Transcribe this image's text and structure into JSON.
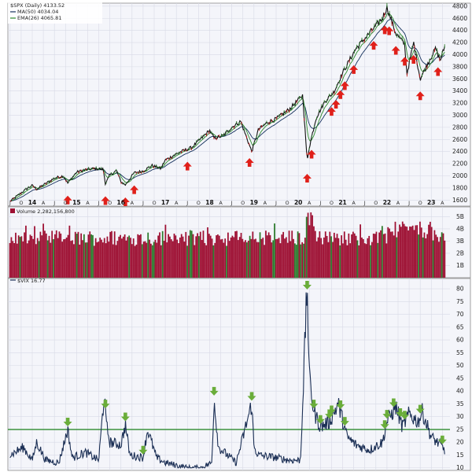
{
  "chart_data": [
    {
      "type": "line",
      "panel": "price",
      "legend": {
        "symbol": "$SPX (Daily) 4133.52",
        "ma": "MA(50) 4034.04",
        "ema": "EMA(26) 4065.81"
      },
      "y_ticks": [
        "4800",
        "4600",
        "4400",
        "4200",
        "4000",
        "3800",
        "3600",
        "3400",
        "3200",
        "3000",
        "2800",
        "2600",
        "2400",
        "2200",
        "2000",
        "1800",
        "1600"
      ],
      "ylim": [
        1500,
        4850
      ],
      "year_labels": [
        "14",
        "15",
        "16",
        "17",
        "18",
        "19",
        "20",
        "21",
        "22",
        "23"
      ],
      "month_labels": [
        "J",
        "O",
        "A",
        "J",
        "O",
        "A",
        "J",
        "O",
        "A",
        "J",
        "O",
        "A",
        "J",
        "O",
        "A",
        "J",
        "O",
        "A",
        "J",
        "O",
        "A",
        "J",
        "O",
        "A",
        "J",
        "O",
        "A",
        "J",
        "O",
        "A",
        "J",
        "O",
        "A"
      ],
      "series": [
        {
          "x": [
            2013.5,
            2013.7,
            2013.9,
            2014.0,
            2014.1,
            2014.3,
            2014.5,
            2014.7,
            2014.8,
            2015.0,
            2015.2,
            2015.4,
            2015.6,
            2015.65,
            2015.75,
            2015.9,
            2016.0,
            2016.1,
            2016.3,
            2016.5,
            2016.7,
            2016.9,
            2017.0,
            2017.3,
            2017.6,
            2018.0,
            2018.1,
            2018.3,
            2018.5,
            2018.7,
            2018.95,
            2019.1,
            2019.3,
            2019.5,
            2019.8,
            2020.1,
            2020.2,
            2020.25,
            2020.4,
            2020.6,
            2020.8,
            2021.0,
            2021.3,
            2021.6,
            2021.9,
            2022.0,
            2022.2,
            2022.4,
            2022.45,
            2022.6,
            2022.75,
            2022.95,
            2023.1,
            2023.2,
            2023.3
          ],
          "values": [
            1580,
            1690,
            1800,
            1840,
            1780,
            1870,
            1960,
            2000,
            1880,
            2060,
            2100,
            2120,
            2110,
            1870,
            2010,
            2090,
            1900,
            1850,
            2050,
            2080,
            2170,
            2120,
            2260,
            2380,
            2470,
            2750,
            2620,
            2660,
            2800,
            2900,
            2400,
            2760,
            2880,
            2940,
            3100,
            3330,
            2240,
            2480,
            2950,
            3230,
            3380,
            3700,
            4100,
            4350,
            4600,
            4780,
            4350,
            4170,
            3680,
            4200,
            3600,
            3900,
            4100,
            3900,
            4130
          ]
        }
      ],
      "signal_dates": [
        2014.8,
        2015.65,
        2016.1,
        2016.3,
        2017.5,
        2018.9,
        2020.2,
        2020.3,
        2020.75,
        2020.85,
        2020.95,
        2021.05,
        2021.25,
        2021.7,
        2021.95,
        2022.05,
        2022.2,
        2022.4,
        2022.6,
        2022.75,
        2023.15
      ],
      "colors": {
        "signal": "#e0201a",
        "price": "#111111",
        "ma": "#14305c",
        "ema": "#2c8a2c"
      }
    },
    {
      "type": "bar",
      "panel": "volume",
      "legend": {
        "label": "Volume 2,282,156,800"
      },
      "y_ticks": [
        "5B",
        "4B",
        "3B",
        "2B",
        "1B"
      ],
      "ylim": [
        0,
        5.8
      ],
      "colors": {
        "down": "#9e1033",
        "up": "#2c7a2c"
      }
    },
    {
      "type": "line",
      "panel": "vix",
      "legend": {
        "label": "$VIX 16.77"
      },
      "y_ticks": [
        "80",
        "75",
        "70",
        "65",
        "60",
        "55",
        "50",
        "45",
        "40",
        "35",
        "30",
        "25",
        "20",
        "15",
        "10"
      ],
      "ylim": [
        9,
        84
      ],
      "threshold": 25,
      "series": [
        {
          "x": [
            2013.5,
            2013.8,
            2014.0,
            2014.1,
            2014.3,
            2014.6,
            2014.8,
            2014.9,
            2015.2,
            2015.5,
            2015.63,
            2015.66,
            2015.75,
            2016.0,
            2016.1,
            2016.2,
            2016.5,
            2016.6,
            2016.8,
            2017.0,
            2017.5,
            2017.8,
            2018.05,
            2018.1,
            2018.2,
            2018.6,
            2018.95,
            2019.0,
            2019.1,
            2019.5,
            2019.8,
            2020.05,
            2020.2,
            2020.25,
            2020.35,
            2020.5,
            2020.7,
            2020.9,
            2021.1,
            2021.3,
            2021.6,
            2021.9,
            2022.0,
            2022.2,
            2022.35,
            2022.5,
            2022.7,
            2022.8,
            2023.0,
            2023.2,
            2023.3
          ],
          "values": [
            15,
            18,
            13,
            20,
            13,
            12,
            25,
            14,
            16,
            13,
            40,
            28,
            20,
            19,
            27,
            15,
            14,
            25,
            14,
            12,
            10,
            10,
            12,
            37,
            18,
            12,
            35,
            18,
            15,
            14,
            13,
            13,
            82,
            45,
            32,
            26,
            28,
            35,
            22,
            19,
            17,
            20,
            28,
            34,
            26,
            31,
            28,
            32,
            22,
            19,
            17
          ]
        }
      ],
      "signal_dates": [
        2014.8,
        2015.65,
        2016.1,
        2016.5,
        2018.1,
        2018.95,
        2020.2,
        2020.35,
        2020.5,
        2020.7,
        2020.75,
        2020.95,
        2021.05,
        2021.95,
        2022.0,
        2022.15,
        2022.3,
        2022.4,
        2022.75,
        2023.25
      ],
      "colors": {
        "signal": "#6aad3a",
        "line": "#1b2f55",
        "threshold": "#2c8a2c"
      }
    }
  ]
}
